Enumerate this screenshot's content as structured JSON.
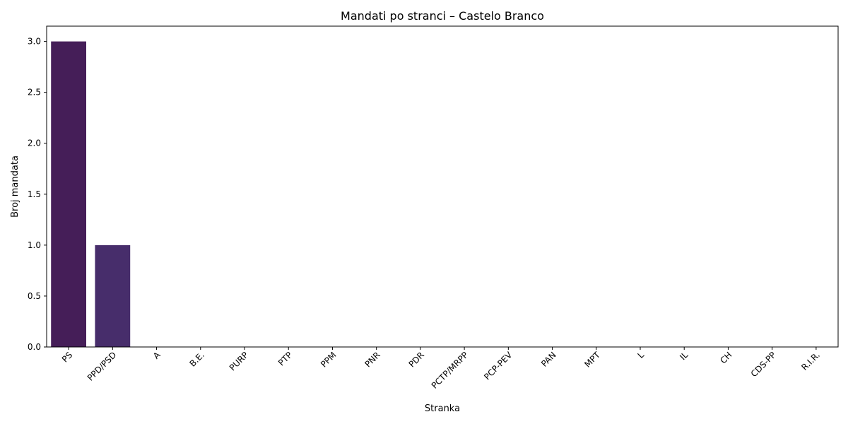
{
  "chart_data": {
    "type": "bar",
    "title": "Mandati po stranci – Castelo Branco",
    "xlabel": "Stranka",
    "ylabel": "Broj mandata",
    "categories": [
      "PS",
      "PPD/PSD",
      "A",
      "B.E.",
      "PURP",
      "PTP",
      "PPM",
      "PNR",
      "PDR",
      "PCTP/MRPP",
      "PCP-PEV",
      "PAN",
      "MPT",
      "L",
      "IL",
      "CH",
      "CDS-PP",
      "R.I.R."
    ],
    "values": [
      3,
      1,
      0,
      0,
      0,
      0,
      0,
      0,
      0,
      0,
      0,
      0,
      0,
      0,
      0,
      0,
      0,
      0
    ],
    "ylim": [
      0,
      3.15
    ],
    "yticks": [
      "0.0",
      "0.5",
      "1.0",
      "1.5",
      "2.0",
      "2.5",
      "3.0"
    ],
    "grid": false,
    "colors": [
      "#451e58",
      "#472d6b"
    ]
  }
}
